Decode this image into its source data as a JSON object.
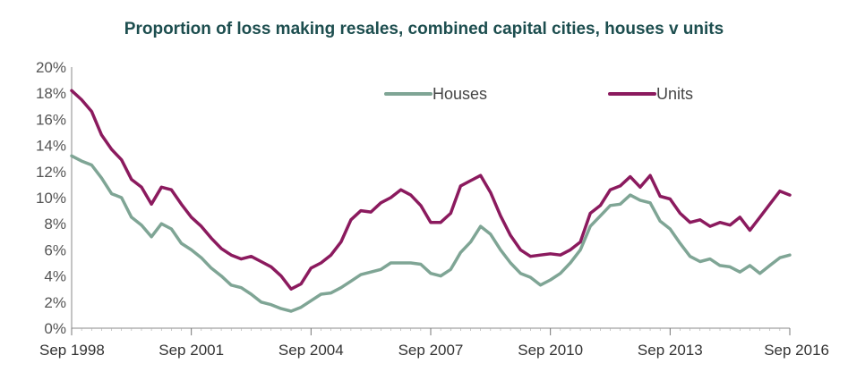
{
  "chart_data": {
    "type": "line",
    "title": "Proportion of loss making resales, combined capital cities, houses v units",
    "xlabel": "",
    "ylabel": "",
    "ylim": [
      0,
      20
    ],
    "y_ticks": [
      "0%",
      "2%",
      "4%",
      "6%",
      "8%",
      "10%",
      "12%",
      "14%",
      "16%",
      "18%",
      "20%"
    ],
    "x_tick_labels": [
      "Sep 1998",
      "Sep 2001",
      "Sep 2004",
      "Sep 2007",
      "Sep 2010",
      "Sep 2013",
      "Sep 2016"
    ],
    "x_tick_years": [
      1998.67,
      2001.67,
      2004.67,
      2007.67,
      2010.67,
      2013.67,
      2016.67
    ],
    "xlim": [
      1998.67,
      2016.67
    ],
    "legend_position": "top-right",
    "series": [
      {
        "name": "Houses",
        "color": "#7fa595",
        "x": [
          1998.67,
          1998.92,
          1999.17,
          1999.42,
          1999.67,
          1999.92,
          2000.17,
          2000.42,
          2000.67,
          2000.92,
          2001.17,
          2001.42,
          2001.67,
          2001.92,
          2002.17,
          2002.42,
          2002.67,
          2002.92,
          2003.17,
          2003.42,
          2003.67,
          2003.92,
          2004.17,
          2004.42,
          2004.67,
          2004.92,
          2005.17,
          2005.42,
          2005.67,
          2005.92,
          2006.17,
          2006.42,
          2006.67,
          2006.92,
          2007.17,
          2007.42,
          2007.67,
          2007.92,
          2008.17,
          2008.42,
          2008.67,
          2008.92,
          2009.17,
          2009.42,
          2009.67,
          2009.92,
          2010.17,
          2010.42,
          2010.67,
          2010.92,
          2011.17,
          2011.42,
          2011.67,
          2011.92,
          2012.17,
          2012.42,
          2012.67,
          2012.92,
          2013.17,
          2013.42,
          2013.67,
          2013.92,
          2014.17,
          2014.42,
          2014.67,
          2014.92,
          2015.17,
          2015.42,
          2015.67,
          2015.92,
          2016.17,
          2016.42,
          2016.67
        ],
        "values": [
          13.2,
          12.8,
          12.5,
          11.5,
          10.3,
          10.0,
          8.5,
          7.9,
          7.0,
          8.0,
          7.6,
          6.5,
          6.0,
          5.4,
          4.6,
          4.0,
          3.3,
          3.1,
          2.6,
          2.0,
          1.8,
          1.5,
          1.3,
          1.6,
          2.1,
          2.6,
          2.7,
          3.1,
          3.6,
          4.1,
          4.3,
          4.5,
          5.0,
          5.0,
          5.0,
          4.9,
          4.2,
          4.0,
          4.5,
          5.8,
          6.6,
          7.8,
          7.2,
          6.0,
          5.0,
          4.2,
          3.9,
          3.3,
          3.7,
          4.2,
          5.0,
          6.0,
          7.8,
          8.6,
          9.4,
          9.5,
          10.2,
          9.8,
          9.6,
          8.2,
          7.6,
          6.5,
          5.5,
          5.1,
          5.3,
          4.8,
          4.7,
          4.3,
          4.8,
          4.2,
          4.8,
          5.4,
          5.6
        ]
      },
      {
        "name": "Units",
        "color": "#8b1a5e",
        "x": [
          1998.67,
          1998.92,
          1999.17,
          1999.42,
          1999.67,
          1999.92,
          2000.17,
          2000.42,
          2000.67,
          2000.92,
          2001.17,
          2001.42,
          2001.67,
          2001.92,
          2002.17,
          2002.42,
          2002.67,
          2002.92,
          2003.17,
          2003.42,
          2003.67,
          2003.92,
          2004.17,
          2004.42,
          2004.67,
          2004.92,
          2005.17,
          2005.42,
          2005.67,
          2005.92,
          2006.17,
          2006.42,
          2006.67,
          2006.92,
          2007.17,
          2007.42,
          2007.67,
          2007.92,
          2008.17,
          2008.42,
          2008.67,
          2008.92,
          2009.17,
          2009.42,
          2009.67,
          2009.92,
          2010.17,
          2010.42,
          2010.67,
          2010.92,
          2011.17,
          2011.42,
          2011.67,
          2011.92,
          2012.17,
          2012.42,
          2012.67,
          2012.92,
          2013.17,
          2013.42,
          2013.67,
          2013.92,
          2014.17,
          2014.42,
          2014.67,
          2014.92,
          2015.17,
          2015.42,
          2015.67,
          2015.92,
          2016.17,
          2016.42,
          2016.67
        ],
        "values": [
          18.2,
          17.5,
          16.6,
          14.8,
          13.7,
          12.9,
          11.4,
          10.8,
          9.5,
          10.8,
          10.6,
          9.5,
          8.5,
          7.8,
          6.9,
          6.1,
          5.6,
          5.3,
          5.5,
          5.1,
          4.7,
          4.0,
          3.0,
          3.4,
          4.6,
          5.0,
          5.6,
          6.6,
          8.3,
          9.0,
          8.9,
          9.6,
          10.0,
          10.6,
          10.2,
          9.4,
          8.1,
          8.1,
          8.8,
          10.9,
          11.3,
          11.7,
          10.4,
          8.6,
          7.1,
          6.0,
          5.5,
          5.6,
          5.7,
          5.6,
          6.0,
          6.6,
          8.8,
          9.4,
          10.6,
          10.9,
          11.6,
          10.8,
          11.7,
          10.1,
          9.9,
          8.8,
          8.1,
          8.3,
          7.8,
          8.1,
          7.9,
          8.5,
          7.5,
          8.5,
          9.5,
          10.5,
          10.2
        ]
      }
    ]
  }
}
